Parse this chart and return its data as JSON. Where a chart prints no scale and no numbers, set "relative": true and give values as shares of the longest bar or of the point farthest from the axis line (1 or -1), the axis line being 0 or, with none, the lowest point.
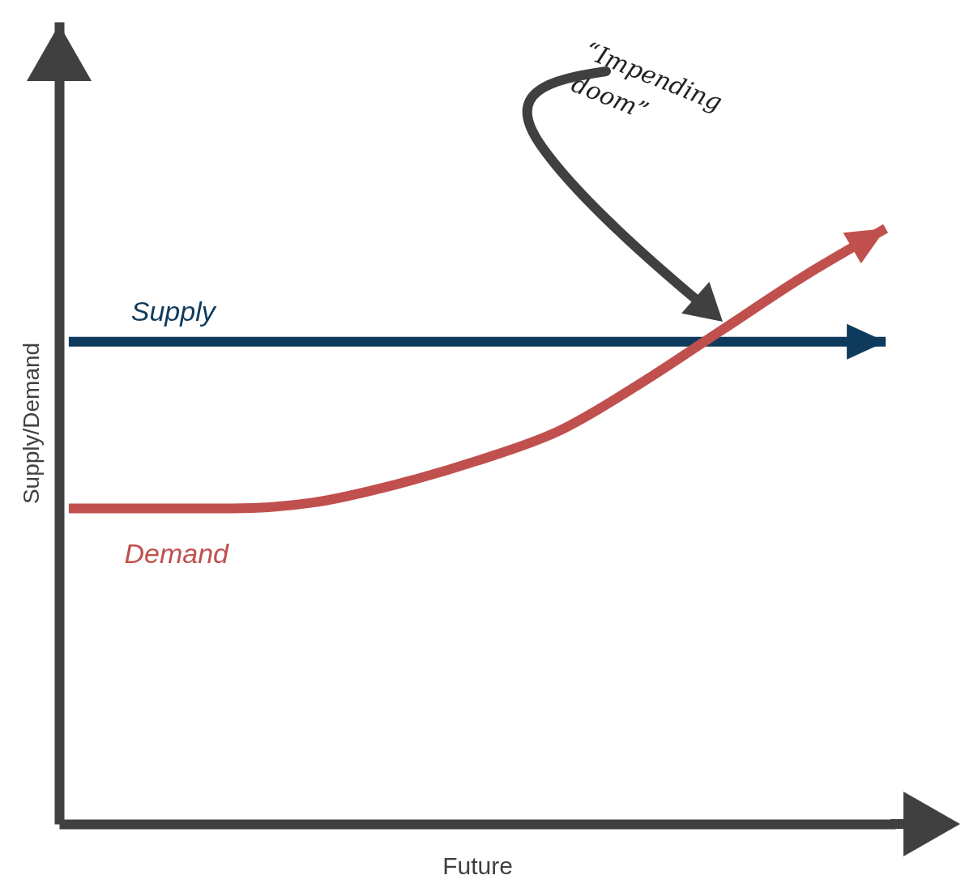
{
  "chart_data": {
    "type": "line",
    "relative": true,
    "xlabel": "Future",
    "ylabel": "Supply/Demand",
    "categories": [
      null,
      null,
      null,
      null,
      null,
      null,
      null,
      null,
      null,
      null,
      null
    ],
    "series": [
      {
        "name": "Supply",
        "color": "#0e3a5c",
        "values": [
          0.81,
          0.81,
          0.81,
          0.81,
          0.81,
          0.81,
          0.81,
          0.81,
          0.81,
          0.81,
          0.81
        ]
      },
      {
        "name": "Demand",
        "color": "#c0504d",
        "values": [
          0.53,
          0.53,
          0.53,
          0.54,
          0.57,
          0.61,
          0.66,
          0.74,
          0.83,
          0.92,
          1.0
        ]
      }
    ],
    "annotations": [
      "“Impending doom”"
    ]
  }
}
